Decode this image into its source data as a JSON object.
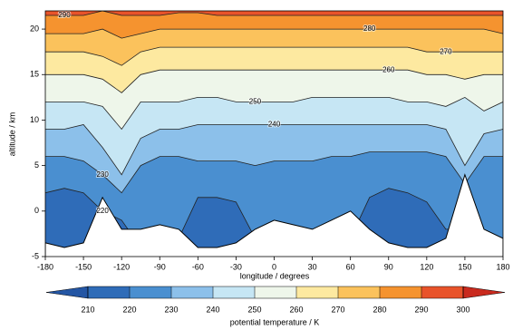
{
  "chart_data": {
    "type": "contour",
    "xlabel": "longitude / degrees",
    "ylabel": "altitude / km",
    "colorbar_label": "potential temperature / K",
    "xlim": [
      -180,
      180
    ],
    "xticks": [
      -180,
      -150,
      -120,
      -90,
      -60,
      -30,
      0,
      30,
      60,
      90,
      120,
      150,
      180
    ],
    "ylim": [
      -5,
      22
    ],
    "yticks": [
      -5,
      0,
      5,
      10,
      15,
      20
    ],
    "levels": [
      210,
      220,
      230,
      240,
      250,
      260,
      270,
      280,
      290,
      300
    ],
    "colors": [
      "#2456a4",
      "#2f6cb8",
      "#4a8fd0",
      "#8cc0ea",
      "#c6e6f4",
      "#eef6ea",
      "#fde9a0",
      "#fbc25c",
      "#f5932f",
      "#e8532a",
      "#c92a1e"
    ],
    "x": [
      -180,
      -165,
      -150,
      -135,
      -120,
      -105,
      -90,
      -75,
      -60,
      -45,
      -30,
      -15,
      0,
      15,
      30,
      45,
      60,
      75,
      90,
      105,
      120,
      135,
      150,
      165,
      180
    ],
    "contours": [
      {
        "level": 220,
        "altitude": [
          2,
          2.5,
          2,
          0,
          -1,
          -4,
          -4,
          -3,
          1.5,
          1.5,
          1,
          -3,
          -3,
          -3,
          -3,
          -3,
          -3,
          1.5,
          2.5,
          2,
          1,
          -2,
          -2,
          -3,
          -3
        ]
      },
      {
        "level": 230,
        "altitude": [
          6,
          6,
          5.5,
          4,
          2,
          5,
          6,
          6,
          5.5,
          5.5,
          5.5,
          5,
          5.5,
          5.5,
          5.5,
          6,
          6,
          6.5,
          6.5,
          6.5,
          6.5,
          6,
          3,
          6,
          6
        ]
      },
      {
        "level": 240,
        "altitude": [
          9,
          9,
          9.5,
          7,
          4,
          8,
          9,
          9,
          9.5,
          9.5,
          9.5,
          9.5,
          9.5,
          9.5,
          9.5,
          9.5,
          9.5,
          9.5,
          9.5,
          9.5,
          9.5,
          9,
          5,
          8.5,
          9
        ]
      },
      {
        "level": 250,
        "altitude": [
          12,
          12,
          12,
          11.5,
          9,
          12,
          12,
          12,
          12.5,
          12.5,
          12,
          12,
          12,
          12,
          12.5,
          12.5,
          12.5,
          12.5,
          12.5,
          12,
          12,
          11.5,
          12.5,
          11,
          12
        ]
      },
      {
        "level": 260,
        "altitude": [
          15,
          15,
          15,
          14.5,
          13,
          15,
          15.5,
          15.5,
          15.5,
          15.5,
          15.5,
          15.5,
          15.5,
          15.5,
          15.5,
          15.5,
          15.5,
          15.5,
          15.5,
          15.5,
          15,
          15,
          14.5,
          15,
          15
        ]
      },
      {
        "level": 270,
        "altitude": [
          17.5,
          17.5,
          17.5,
          17,
          16,
          17.5,
          18,
          18,
          18,
          18,
          18,
          18,
          18,
          18,
          18,
          18,
          18,
          18,
          18,
          18,
          17.5,
          17.5,
          17.5,
          17.5,
          17.5
        ]
      },
      {
        "level": 280,
        "altitude": [
          19.5,
          19.5,
          19.5,
          20,
          19,
          19.5,
          20,
          20,
          20,
          20,
          20,
          20,
          20,
          20,
          20,
          20,
          20,
          20,
          20,
          20,
          20,
          20,
          20,
          20,
          19.5
        ]
      },
      {
        "level": 290,
        "altitude": [
          21.5,
          21.5,
          21.5,
          22,
          21.5,
          21.5,
          21.5,
          21.8,
          21.8,
          21.5,
          21.5,
          21.5,
          21.5,
          21.5,
          21.5,
          21.5,
          21.5,
          21.5,
          21.5,
          21.5,
          21.5,
          21.5,
          21.5,
          21.5,
          21.5
        ]
      }
    ],
    "terrain": [
      -3.5,
      -4,
      -3.5,
      1.5,
      -2,
      -2,
      -1.5,
      -2,
      -4,
      -4,
      -3.5,
      -2,
      -1,
      -1.5,
      -2,
      -1,
      0,
      -2,
      -3.5,
      -4,
      -4,
      -3,
      4,
      -2,
      -3
    ]
  }
}
